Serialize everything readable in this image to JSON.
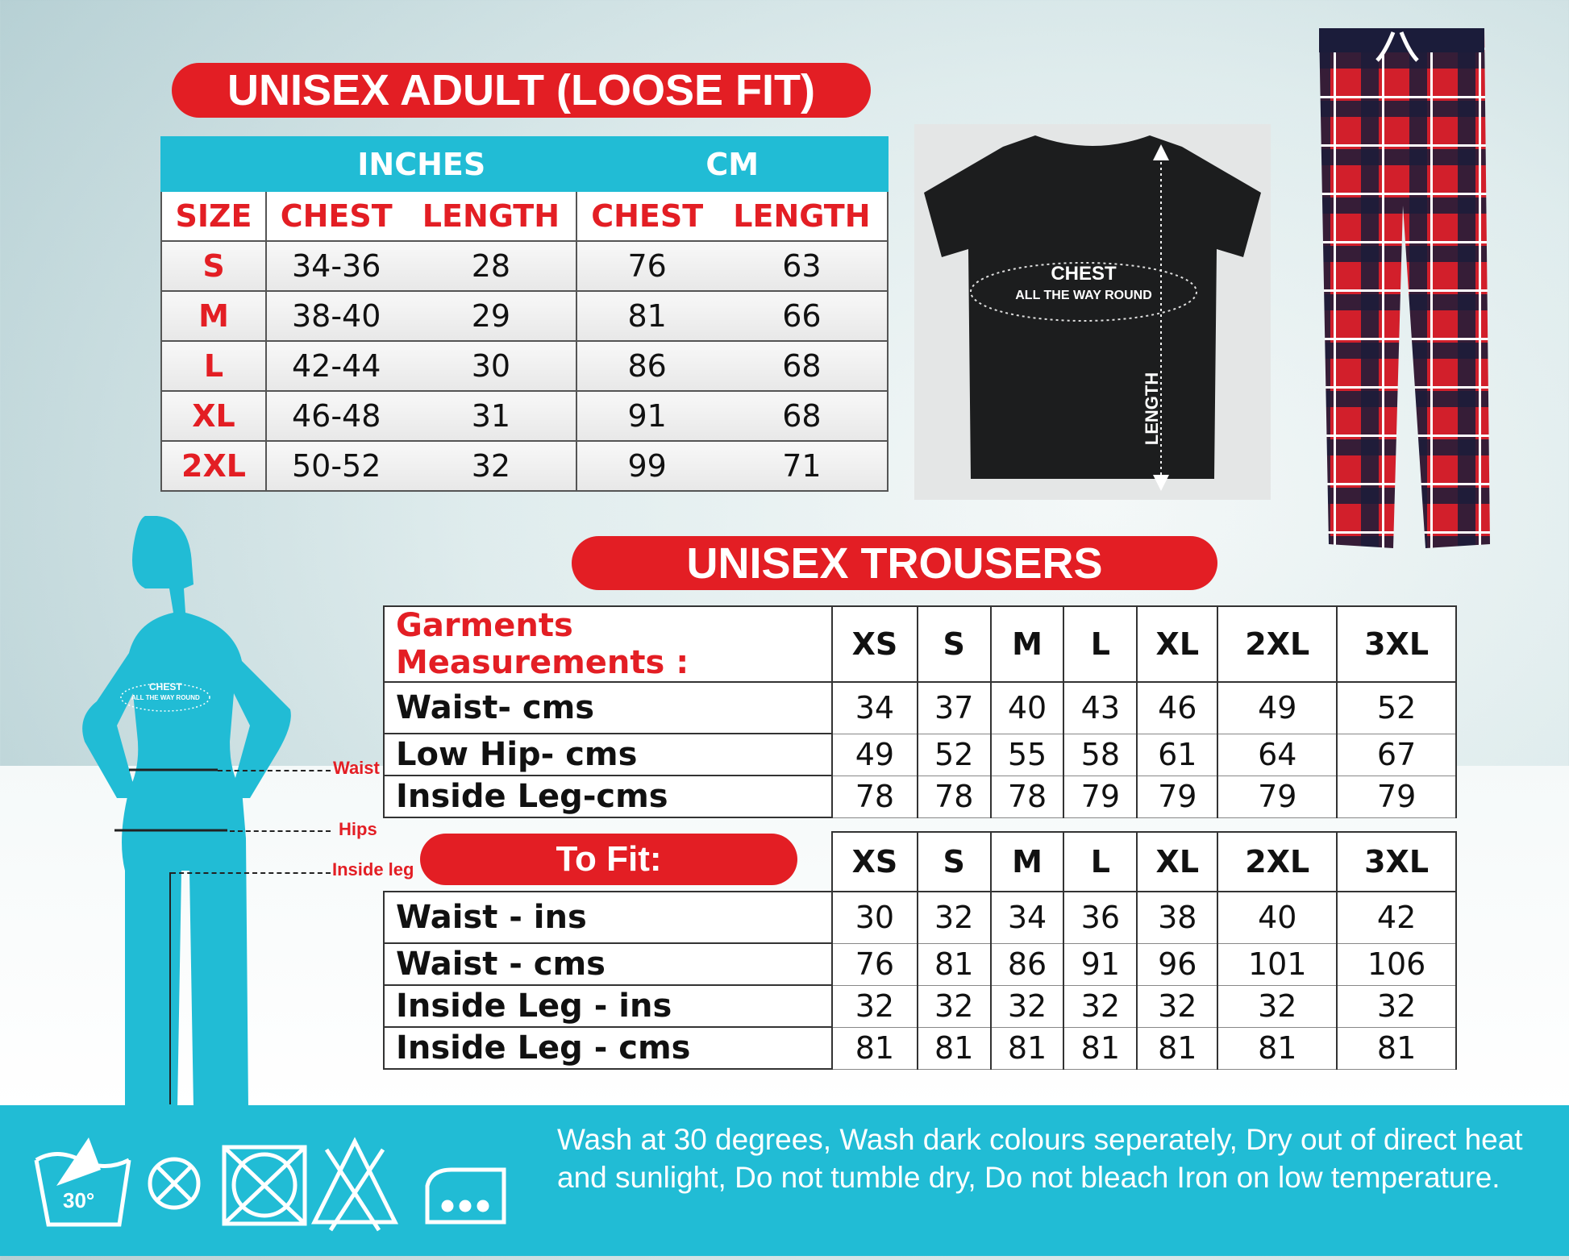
{
  "adult": {
    "title": "UNISEX ADULT (LOOSE FIT)",
    "group_inches": "INCHES",
    "group_cm": "CM",
    "headers": [
      "SIZE",
      "CHEST",
      "LENGTH",
      "CHEST",
      "LENGTH"
    ],
    "rows": [
      [
        "S",
        "34-36",
        "28",
        "76",
        "63"
      ],
      [
        "M",
        "38-40",
        "29",
        "81",
        "66"
      ],
      [
        "L",
        "42-44",
        "30",
        "86",
        "68"
      ],
      [
        "XL",
        "46-48",
        "31",
        "91",
        "68"
      ],
      [
        "2XL",
        "50-52",
        "32",
        "99",
        "71"
      ]
    ]
  },
  "tshirt": {
    "chest_label": "CHEST",
    "chest_sub": "ALL THE WAY ROUND",
    "length_label": "LENGTH"
  },
  "figure": {
    "chest_label": "CHEST",
    "chest_sub": "ALL THE WAY ROUND",
    "waist": "Waist",
    "hips": "Hips",
    "inside_leg": "Inside leg"
  },
  "trousers": {
    "title": "UNISEX TROUSERS",
    "header_label": "Garments Measurements :",
    "sizes": [
      "XS",
      "S",
      "M",
      "L",
      "XL",
      "2XL",
      "3XL"
    ],
    "rows": [
      {
        "label": "Waist- cms",
        "values": [
          "34",
          "37",
          "40",
          "43",
          "46",
          "49",
          "52"
        ]
      },
      {
        "label": "Low Hip- cms",
        "values": [
          "49",
          "52",
          "55",
          "58",
          "61",
          "64",
          "67"
        ]
      },
      {
        "label": "Inside Leg-cms",
        "values": [
          "78",
          "78",
          "78",
          "79",
          "79",
          "79",
          "79"
        ]
      }
    ]
  },
  "to_fit": {
    "title": "To Fit:",
    "sizes": [
      "XS",
      "S",
      "M",
      "L",
      "XL",
      "2XL",
      "3XL"
    ],
    "rows": [
      {
        "label": "Waist - ins",
        "values": [
          "30",
          "32",
          "34",
          "36",
          "38",
          "40",
          "42"
        ]
      },
      {
        "label": "Waist - cms",
        "values": [
          "76",
          "81",
          "86",
          "91",
          "96",
          "101",
          "106"
        ]
      },
      {
        "label": "Inside Leg - ins",
        "values": [
          "32",
          "32",
          "32",
          "32",
          "32",
          "32",
          "32"
        ]
      },
      {
        "label": "Inside Leg - cms",
        "values": [
          "81",
          "81",
          "81",
          "81",
          "81",
          "81",
          "81"
        ]
      }
    ]
  },
  "care": {
    "icons": [
      "hand-wash-30-icon",
      "do-not-dry-clean-icon",
      "do-not-tumble-dry-icon",
      "do-not-bleach-icon",
      "iron-low-icon"
    ],
    "wash_temp": "30°",
    "text": "Wash at 30 degrees, Wash dark colours seperately, Dry out of direct heat and sunlight, Do not tumble dry, Do not bleach Iron on low temperature."
  },
  "colors": {
    "red": "#e31e24",
    "cyan": "#21bcd5"
  }
}
